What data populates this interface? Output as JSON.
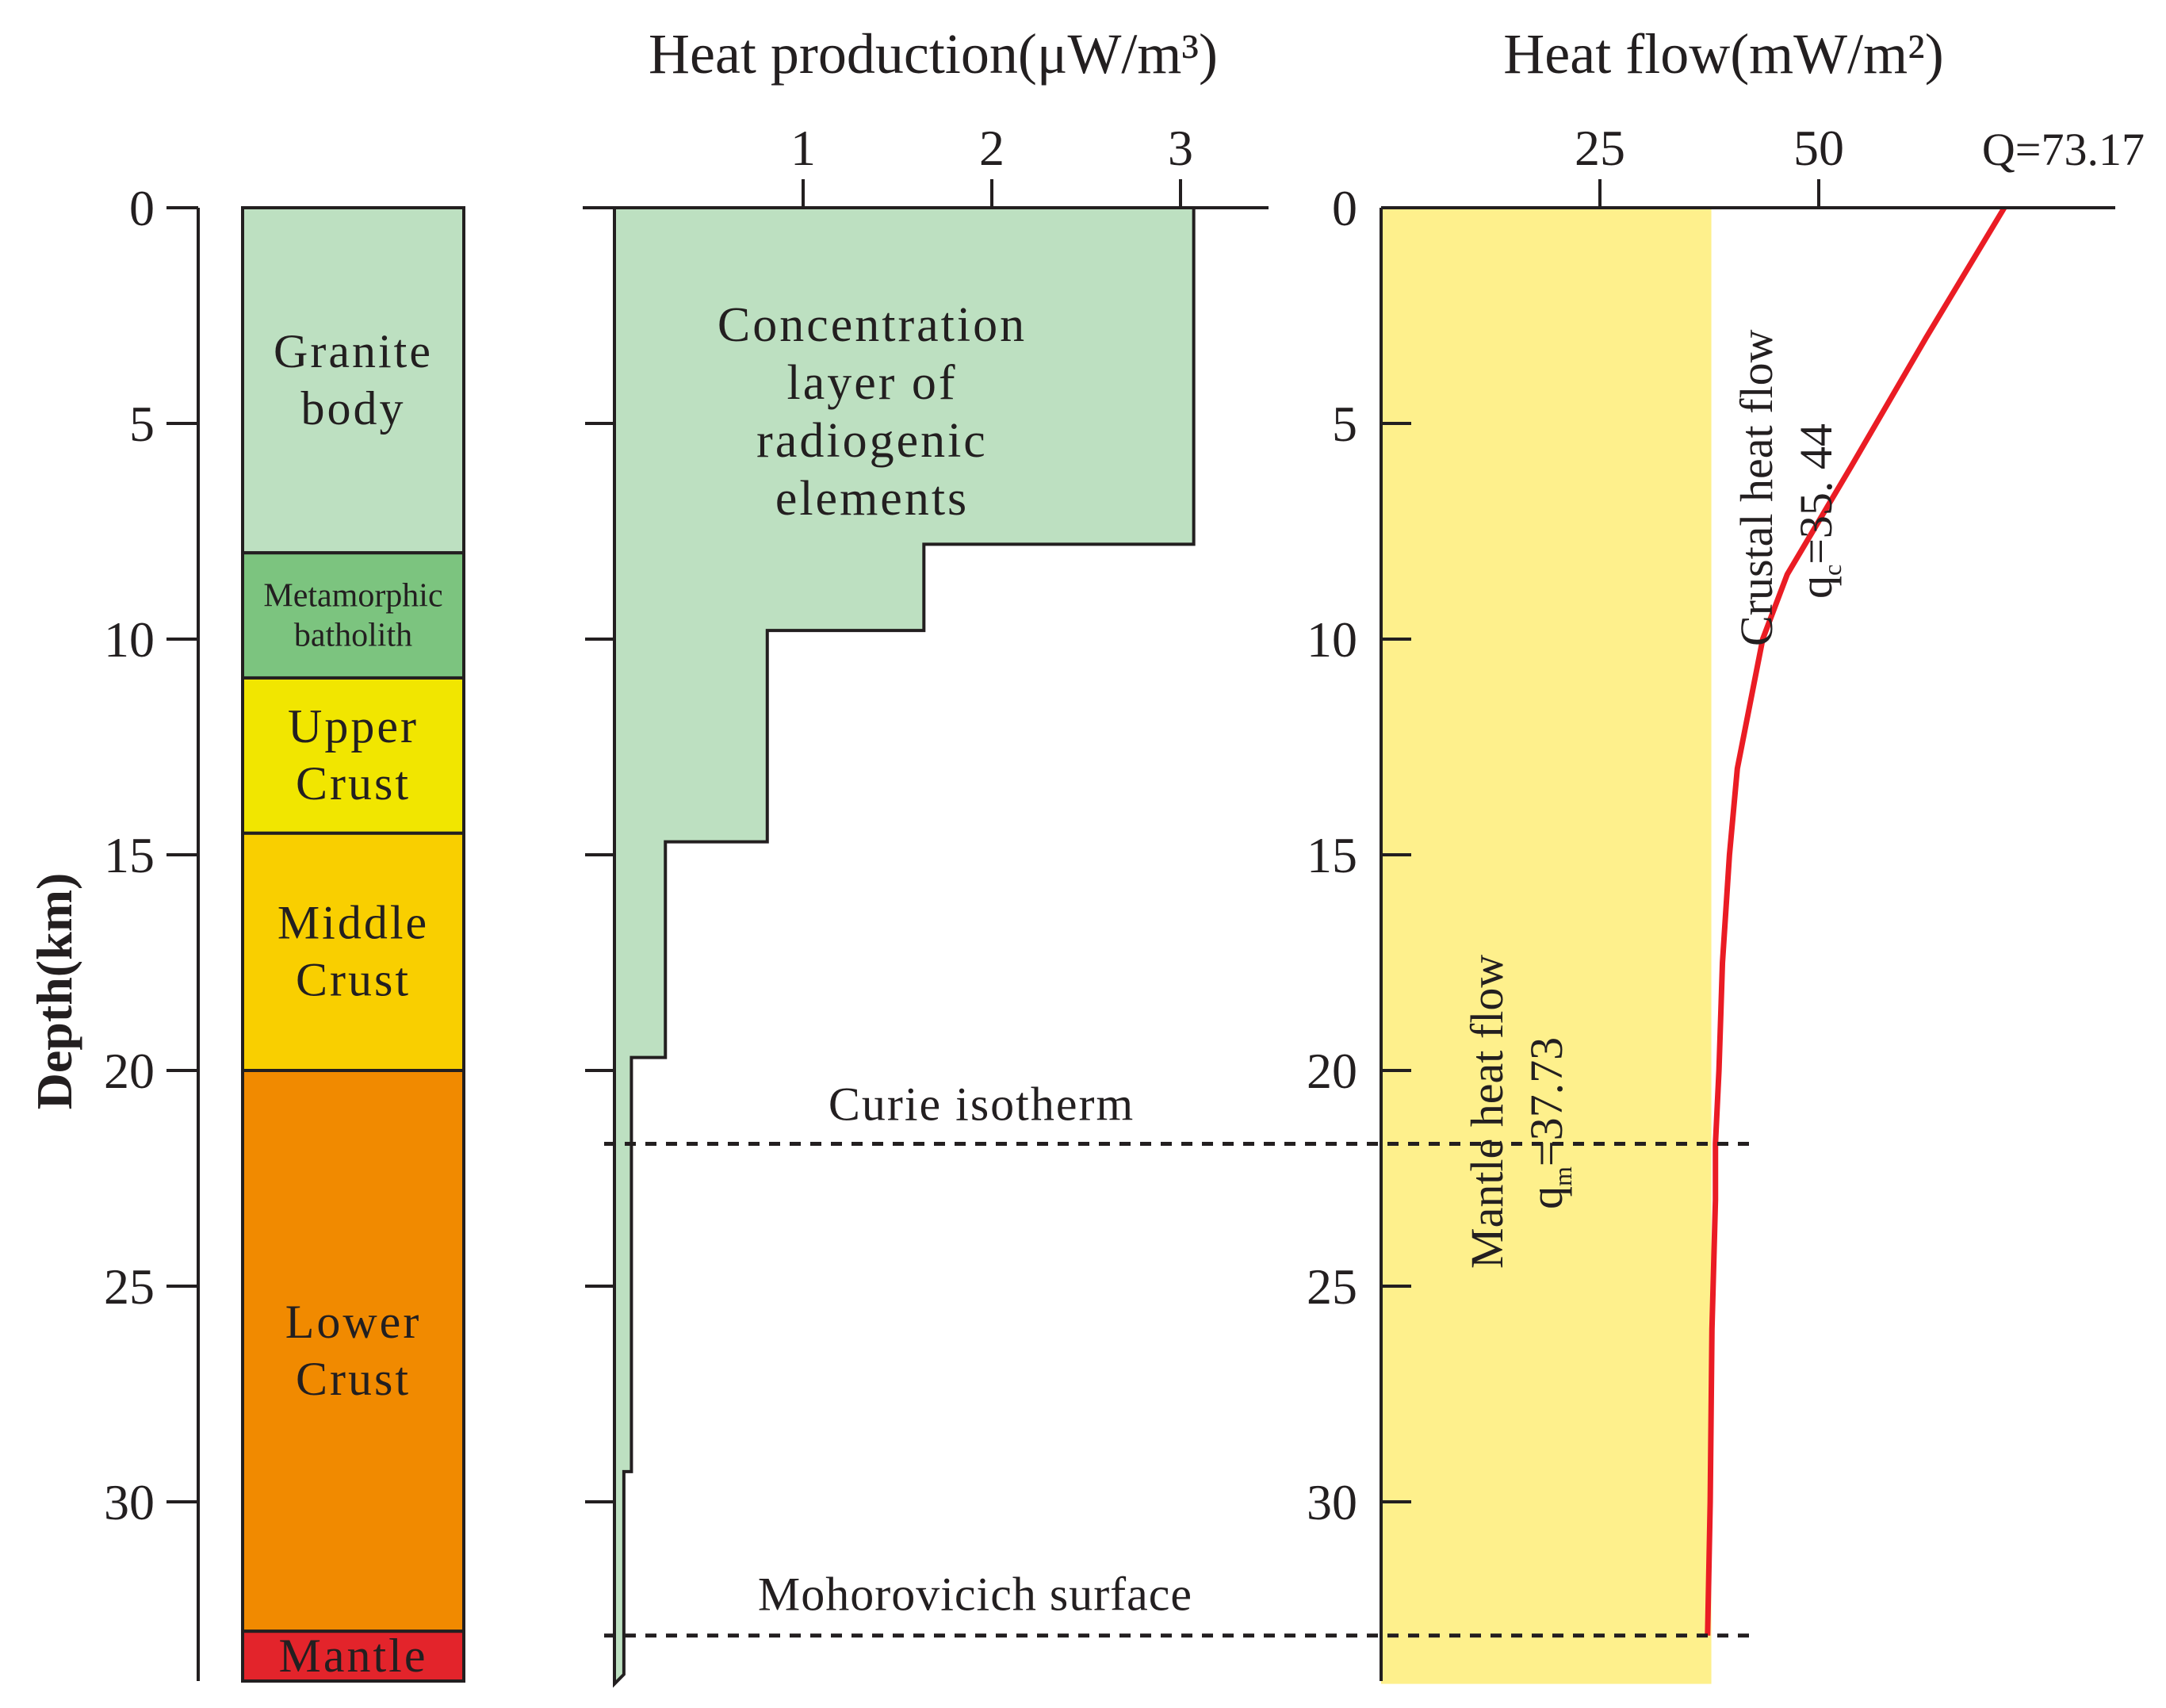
{
  "chart_data": [
    {
      "type": "table",
      "name": "lithology-column",
      "ylabel": "Depth(km)",
      "ylim": [
        0,
        34
      ],
      "y_ticks": [
        0,
        5,
        10,
        15,
        20,
        25,
        30
      ],
      "layers": [
        {
          "lines": [
            "Granite",
            "body"
          ],
          "top": 0,
          "bottom": 8,
          "color": "#bde0c1"
        },
        {
          "lines": [
            "Metamorphic",
            "batholith"
          ],
          "top": 8,
          "bottom": 10.9,
          "color": "#7cc47f"
        },
        {
          "lines": [
            "Upper",
            "Crust"
          ],
          "top": 10.9,
          "bottom": 14.5,
          "color": "#f1e600"
        },
        {
          "lines": [
            "Middle",
            "Crust"
          ],
          "top": 14.5,
          "bottom": 20,
          "color": "#f9cf00"
        },
        {
          "lines": [
            "Lower",
            "Crust"
          ],
          "top": 20,
          "bottom": 33,
          "color": "#f18a00"
        },
        {
          "lines": [
            "Mantle"
          ],
          "top": 33,
          "bottom": 34.3,
          "color": "#e3242b"
        }
      ]
    },
    {
      "type": "area",
      "name": "heat-production",
      "title": "Heat production(μW/m³)",
      "x_ticks": [
        1,
        2,
        3
      ],
      "xlim": [
        0,
        3.44
      ],
      "ylim": [
        0,
        34
      ],
      "y_ticks": [
        0,
        5,
        10,
        15,
        20,
        25,
        30
      ],
      "fill_color": "#bde0c1",
      "series": [
        {
          "values": [
            {
              "top": 0,
              "bottom": 7.8,
              "value": 3.07
            },
            {
              "top": 7.8,
              "bottom": 9.8,
              "value": 1.64
            },
            {
              "top": 9.8,
              "bottom": 14.7,
              "value": 0.81
            },
            {
              "top": 14.7,
              "bottom": 19.7,
              "value": 0.27
            },
            {
              "top": 19.7,
              "bottom": 29.3,
              "value": 0.09
            },
            {
              "top": 29.3,
              "bottom": 34,
              "value": 0.05
            }
          ]
        }
      ],
      "annotation_lines": [
        "Concentration",
        "layer  of",
        "radiogenic",
        "elements"
      ],
      "curie_label": "Curie isotherm",
      "moho_label": "Mohorovicich surface",
      "curie_depth": 21.7,
      "moho_depth": 33.1
    },
    {
      "type": "line",
      "name": "heat-flow",
      "title": "Heat flow(mW/m²)",
      "x_ticks": [
        25,
        50
      ],
      "xlim": [
        0,
        83
      ],
      "ylim": [
        0,
        34
      ],
      "y_ticks": [
        0,
        5,
        10,
        15,
        20,
        25,
        30
      ],
      "q_label": "Q=73.17",
      "mantle_value": 37.73,
      "mantle_color": "#fef08c",
      "crust_color": "#fef7b6",
      "line_color": "#ea1c24",
      "mantle_label": "Mantle  heat  flow",
      "mantle_q": "=37.73",
      "crustal_label": "Crustal  heat  flow",
      "crustal_q": "=35. 44",
      "series": [
        {
          "x": [
            71.2,
            62.3,
            53.7,
            46.4,
            43.6,
            40.7,
            39.8,
            39.0,
            38.6,
            38.2,
            38.2,
            37.8,
            37.6,
            37.3
          ],
          "y": [
            0,
            3,
            6,
            8.5,
            10,
            13,
            15,
            17.5,
            20,
            21.7,
            23,
            26,
            30,
            33.1
          ]
        }
      ]
    }
  ]
}
